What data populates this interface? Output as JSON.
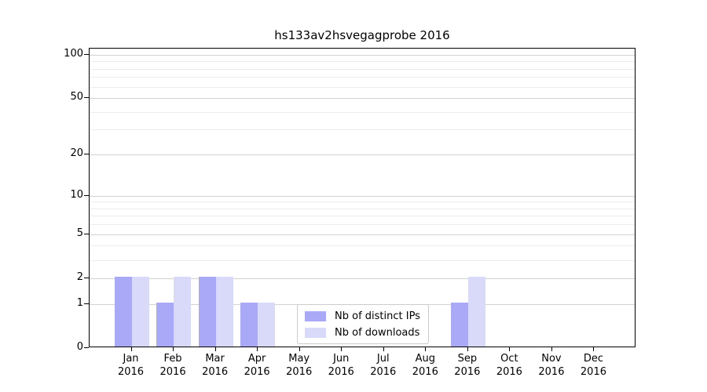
{
  "chart_data": {
    "type": "bar",
    "title": "hs133av2hsvegagprobe 2016",
    "categories": [
      "Jan 2016",
      "Feb 2016",
      "Mar 2016",
      "Apr 2016",
      "May 2016",
      "Jun 2016",
      "Jul 2016",
      "Aug 2016",
      "Sep 2016",
      "Oct 2016",
      "Nov 2016",
      "Dec 2016"
    ],
    "series": [
      {
        "name": "Nb of distinct IPs",
        "color": "#a9a9f8",
        "values": [
          2,
          1,
          2,
          1,
          0,
          0,
          0,
          0,
          1,
          0,
          0,
          0
        ]
      },
      {
        "name": "Nb of downloads",
        "color": "#d9d9fa",
        "values": [
          2,
          2,
          2,
          1,
          0,
          0,
          0,
          0,
          2,
          0,
          0,
          0
        ]
      }
    ],
    "xlabel": "",
    "ylabel": "",
    "yscale": "symlog-log1p",
    "ylim": [
      0,
      110
    ],
    "ytick_labels": [
      "0",
      "1",
      "2",
      "5",
      "10",
      "20",
      "50",
      "100"
    ],
    "ytick_values": [
      0,
      1,
      2,
      5,
      10,
      20,
      50,
      100
    ],
    "minor_grid_values": [
      3,
      4,
      6,
      7,
      8,
      9,
      30,
      40,
      60,
      70,
      80,
      90
    ],
    "grid": "on",
    "legend_position": "lower center inside plot",
    "colors": {
      "major_grid": "#d2d2d2",
      "minor_grid": "#ececec",
      "axis": "#000000",
      "background": "#ffffff"
    }
  },
  "legend": {
    "items": [
      "Nb of distinct IPs",
      "Nb of downloads"
    ]
  }
}
